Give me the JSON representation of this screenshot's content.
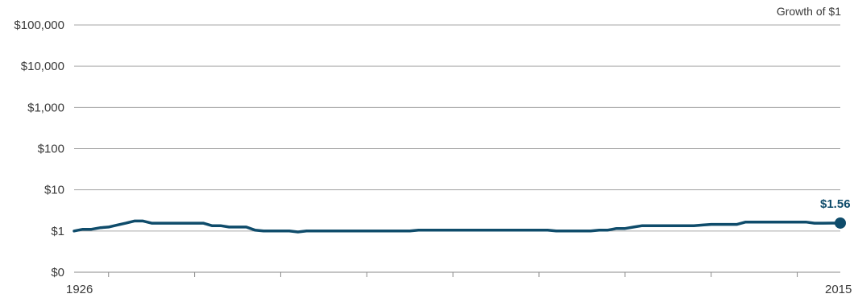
{
  "chart_data": {
    "type": "line",
    "legend_text": "Growth of $1",
    "y_scale": "log",
    "y_ticks": [
      {
        "value": 1,
        "label": "$0"
      },
      {
        "value": 10,
        "label": "$1"
      },
      {
        "value": 100,
        "label": "$10"
      },
      {
        "value": 1000,
        "label": "$100"
      },
      {
        "value": 10000,
        "label": "$1,000"
      },
      {
        "value": 100000,
        "label": "$10,000"
      },
      {
        "value": 1000000,
        "label": "$100,000"
      }
    ],
    "x_range": [
      1926,
      2015
    ],
    "x_tick_labels": {
      "start": "1926",
      "end": "2015"
    },
    "x_minor_ticks": [
      1930,
      1940,
      1950,
      1960,
      1970,
      1980,
      1990,
      2000,
      2010
    ],
    "series": [
      {
        "color": "#0f4c6b",
        "x": [
          1926,
          1927,
          1928,
          1929,
          1930,
          1931,
          1932,
          1933,
          1934,
          1935,
          1936,
          1937,
          1938,
          1939,
          1940,
          1941,
          1942,
          1943,
          1944,
          1945,
          1946,
          1947,
          1948,
          1949,
          1950,
          1951,
          1952,
          1953,
          1954,
          1955,
          1956,
          1957,
          1958,
          1959,
          1960,
          1961,
          1962,
          1963,
          1964,
          1965,
          1966,
          1967,
          1968,
          1969,
          1970,
          1971,
          1972,
          1973,
          1974,
          1975,
          1976,
          1977,
          1978,
          1979,
          1980,
          1981,
          1982,
          1983,
          1984,
          1985,
          1986,
          1987,
          1988,
          1989,
          1990,
          1991,
          1992,
          1993,
          1994,
          1995,
          1996,
          1997,
          1998,
          1999,
          2000,
          2001,
          2002,
          2003,
          2004,
          2005,
          2006,
          2007,
          2008,
          2009,
          2010,
          2011,
          2012,
          2013,
          2014,
          2015
        ],
        "y": [
          1.0,
          1.1,
          1.1,
          1.2,
          1.25,
          1.4,
          1.55,
          1.75,
          1.75,
          1.55,
          1.55,
          1.55,
          1.55,
          1.55,
          1.55,
          1.55,
          1.35,
          1.35,
          1.25,
          1.25,
          1.25,
          1.05,
          1.0,
          1.0,
          1.0,
          1.0,
          0.95,
          1.0,
          1.0,
          1.0,
          1.0,
          1.0,
          1.0,
          1.0,
          1.0,
          1.0,
          1.0,
          1.0,
          1.0,
          1.0,
          1.05,
          1.05,
          1.05,
          1.05,
          1.05,
          1.05,
          1.05,
          1.05,
          1.05,
          1.05,
          1.05,
          1.05,
          1.05,
          1.05,
          1.05,
          1.05,
          1.0,
          1.0,
          1.0,
          1.0,
          1.0,
          1.05,
          1.05,
          1.15,
          1.15,
          1.25,
          1.35,
          1.35,
          1.35,
          1.35,
          1.35,
          1.35,
          1.35,
          1.4,
          1.45,
          1.45,
          1.45,
          1.45,
          1.65,
          1.65,
          1.65,
          1.65,
          1.65,
          1.65,
          1.65,
          1.65,
          1.55,
          1.55,
          1.56,
          1.56
        ]
      }
    ],
    "end_label": "$1.56",
    "end_value": 1.56,
    "end_year": 2015
  }
}
